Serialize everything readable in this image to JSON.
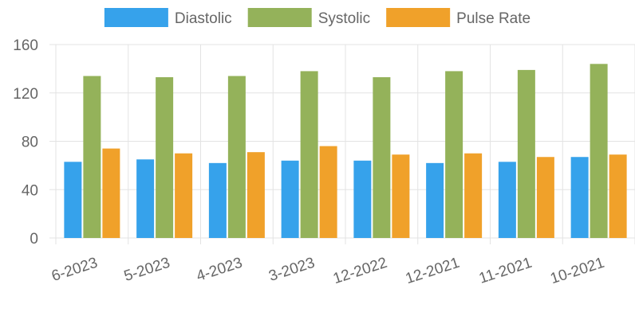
{
  "chart_data": {
    "type": "bar",
    "title": "",
    "xlabel": "",
    "ylabel": "",
    "ylim": [
      0,
      160
    ],
    "yticks": [
      0,
      40,
      80,
      120,
      160
    ],
    "grid": true,
    "legend_position": "top",
    "categories": [
      "6-2023",
      "5-2023",
      "4-2023",
      "3-2023",
      "12-2022",
      "12-2021",
      "11-2021",
      "10-2021"
    ],
    "series": [
      {
        "name": "Diastolic",
        "color": "#36a2eb",
        "values": [
          63,
          65,
          62,
          64,
          64,
          62,
          63,
          67
        ]
      },
      {
        "name": "Systolic",
        "color": "#94b25a",
        "values": [
          134,
          133,
          134,
          138,
          133,
          138,
          139,
          144
        ]
      },
      {
        "name": "Pulse Rate",
        "color": "#f0a12a",
        "values": [
          74,
          70,
          71,
          76,
          69,
          70,
          67,
          69
        ]
      }
    ]
  }
}
